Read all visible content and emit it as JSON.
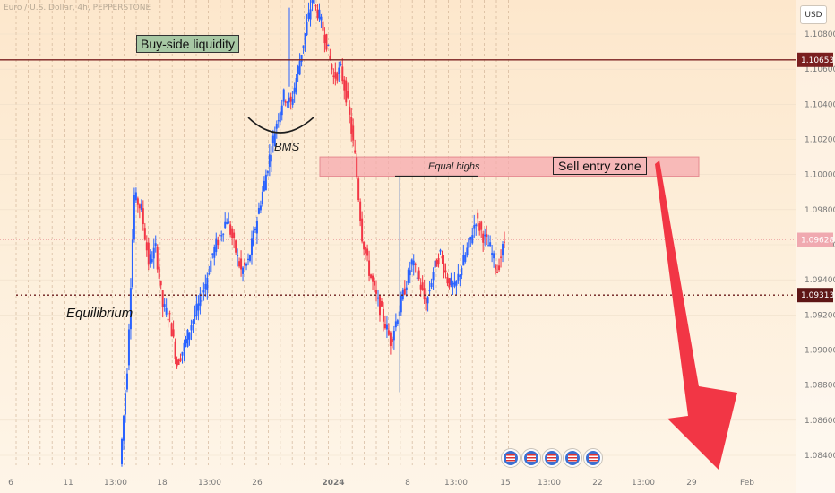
{
  "symbol": "Euro / U.S. Dollar, 4h, PEPPERSTONE",
  "currency": "USD",
  "price_labels": {
    "liquidity_level": "1.10653",
    "current_price": "1.09628",
    "equilibrium_level": "1.09313"
  },
  "annotations": {
    "buy_side": "Buy-side liquidity",
    "sell_zone": "Sell entry zone",
    "equal_highs": "Equal highs",
    "bms": "BMS",
    "equilibrium": "Equilibrium"
  },
  "colors": {
    "up_candle": "#2962ff",
    "down_candle": "#f23645",
    "liquidity_line": "#7a1f1f",
    "sell_zone_fill": "#f5a9ad",
    "arrow": "#f23645",
    "buyside_fill": "#a7c8a4"
  },
  "icons": [
    "us-flag-icon",
    "us-flag-icon",
    "us-flag-icon",
    "us-flag-icon",
    "us-flag-icon"
  ],
  "chart_data": {
    "type": "candlestick",
    "title": "Euro / U.S. Dollar, 4h, PEPPERSTONE",
    "y_ticks": [
      "1.10800",
      "1.10600",
      "1.10400",
      "1.10200",
      "1.10000",
      "1.09800",
      "1.09600",
      "1.09400",
      "1.09200",
      "1.09000",
      "1.08800",
      "1.08600",
      "1.08400"
    ],
    "x_ticks": [
      "6",
      "11",
      "13:00",
      "18",
      "13:00",
      "26",
      "2024",
      "8",
      "13:00",
      "15",
      "13:00",
      "22",
      "13:00",
      "29",
      "Feb"
    ],
    "ylim": [
      1.0835,
      1.1095
    ],
    "grid": true,
    "levels": {
      "buy_side_liquidity": 1.10653,
      "current": 1.09628,
      "equilibrium": 1.09313
    },
    "sell_zone": [
      1.0999,
      1.101
    ],
    "close_path": [
      1.0835,
      1.089,
      1.0988,
      1.098,
      1.095,
      1.0958,
      1.0925,
      1.0918,
      1.0892,
      1.0902,
      1.0915,
      1.0925,
      1.0938,
      1.0955,
      1.0965,
      1.0975,
      1.096,
      1.0945,
      1.095,
      1.097,
      1.099,
      1.101,
      1.103,
      1.1045,
      1.104,
      1.106,
      1.108,
      1.11,
      1.109,
      1.1075,
      1.1055,
      1.106,
      1.104,
      1.101,
      1.0965,
      1.0945,
      1.093,
      1.0918,
      1.0905,
      1.092,
      1.0935,
      1.095,
      1.094,
      1.0925,
      1.0945,
      1.0955,
      1.094,
      1.0935,
      1.0948,
      1.096,
      1.0975,
      1.0965,
      1.0958,
      1.0945,
      1.0962
    ]
  }
}
